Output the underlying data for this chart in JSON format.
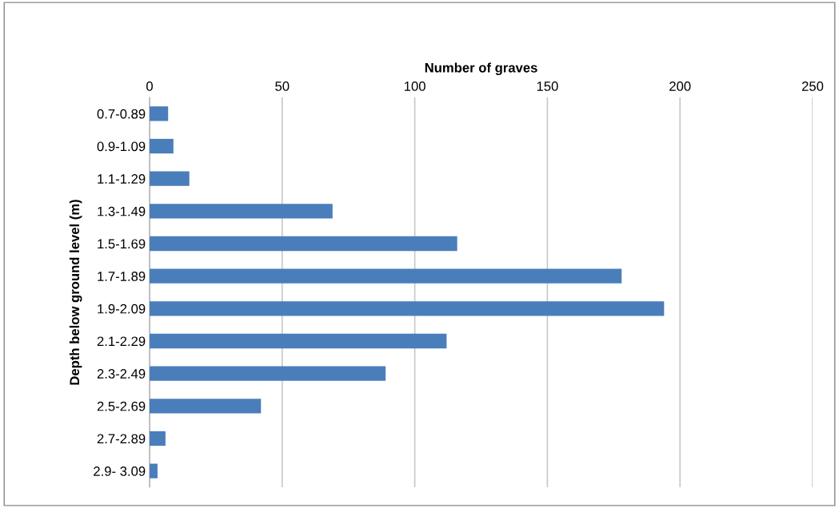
{
  "chart_data": {
    "type": "bar",
    "orientation": "horizontal",
    "xlabel": "Number of graves",
    "ylabel": "Depth below ground level (m)",
    "categories": [
      "0.7-0.89",
      "0.9-1.09",
      "1.1-1.29",
      "1.3-1.49",
      "1.5-1.69",
      "1.7-1.89",
      "1.9-2.09",
      "2.1-2.29",
      "2.3-2.49",
      "2.5-2.69",
      "2.7-2.89",
      "2.9- 3.09"
    ],
    "values": [
      7,
      9,
      15,
      69,
      116,
      178,
      194,
      112,
      89,
      42,
      6,
      3
    ],
    "color": "#4a7ebb",
    "xlim": [
      0,
      250
    ],
    "xticks": [
      0,
      50,
      100,
      150,
      200,
      250
    ],
    "grid": "x"
  }
}
